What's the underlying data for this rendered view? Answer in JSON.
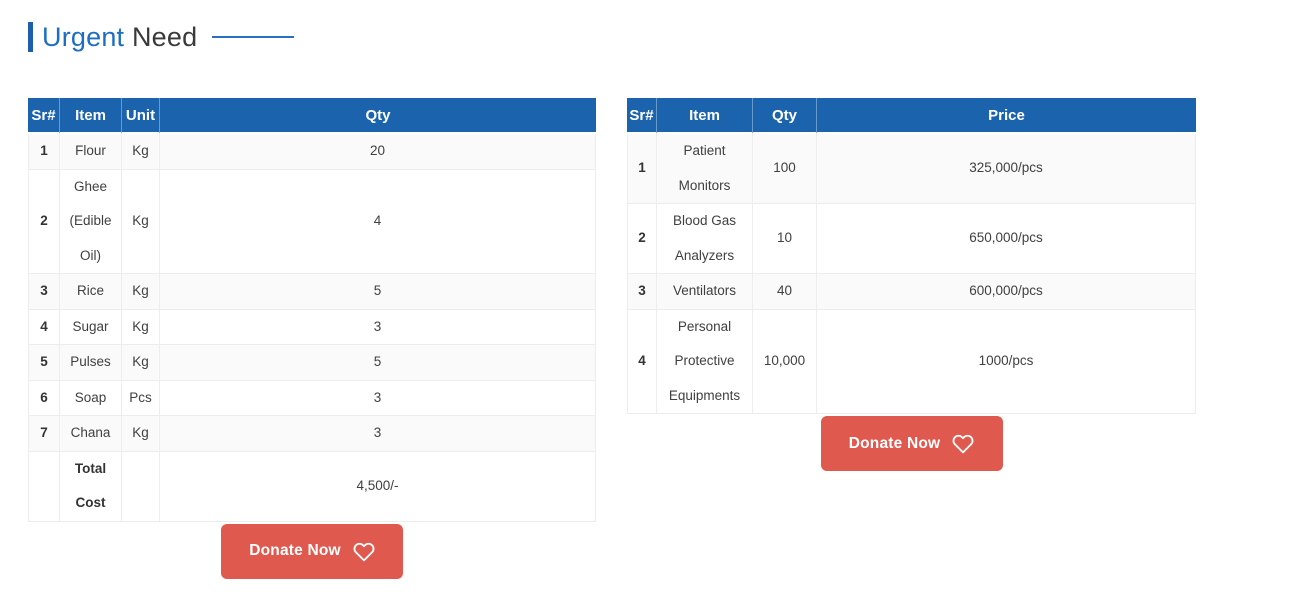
{
  "title": {
    "primary": "Urgent",
    "secondary": "Need"
  },
  "colors": {
    "header_blue": "#1c63ae",
    "title_blue": "#1b6ec2",
    "bar_blue": "#1e5fad",
    "line_blue": "#2b6fc0",
    "button_red": "#e0594e",
    "stripe": "#fafafa"
  },
  "left_table": {
    "headers": [
      "Sr#",
      "Item",
      "Unit",
      "Qty"
    ],
    "rows": [
      [
        "1",
        "Flour",
        "Kg",
        "20"
      ],
      [
        "2",
        "Ghee (Edible Oil)",
        "Kg",
        "4"
      ],
      [
        "3",
        "Rice",
        "Kg",
        "5"
      ],
      [
        "4",
        "Sugar",
        "Kg",
        "3"
      ],
      [
        "5",
        "Pulses",
        "Kg",
        "5"
      ],
      [
        "6",
        "Soap",
        "Pcs",
        "3"
      ],
      [
        "7",
        "Chana",
        "Kg",
        "3"
      ]
    ],
    "total_label": "Total Cost",
    "total_value": "4,500/-",
    "donate_label": "Donate Now"
  },
  "right_table": {
    "headers": [
      "Sr#",
      "Item",
      "Qty",
      "Price"
    ],
    "rows": [
      [
        "1",
        "Patient Monitors",
        "100",
        "325,000/pcs"
      ],
      [
        "2",
        "Blood Gas Analyzers",
        "10",
        "650,000/pcs"
      ],
      [
        "3",
        "Ventilators",
        "40",
        "600,000/pcs"
      ],
      [
        "4",
        "Personal Protective Equipments",
        "10,000",
        "1000/pcs"
      ]
    ],
    "donate_label": "Donate Now"
  }
}
